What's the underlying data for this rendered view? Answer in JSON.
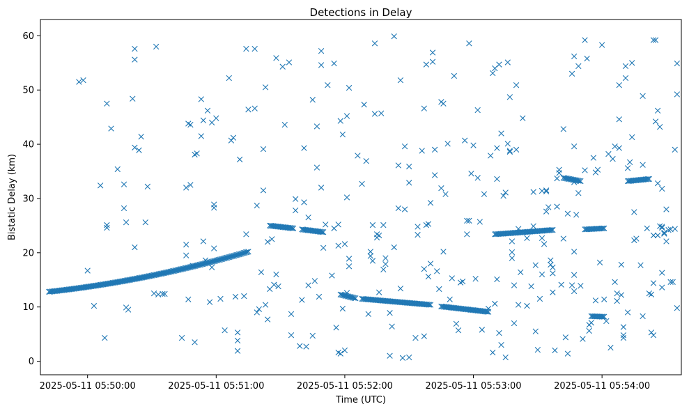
{
  "chart_data": {
    "type": "scatter",
    "title": "Detections in Delay",
    "xlabel": "Time (UTC)",
    "ylabel": "Bistatic Delay (km)",
    "x_ticks": [
      "2025-05-11 05:50:00",
      "2025-05-11 05:51:00",
      "2025-05-11 05:52:00",
      "2025-05-11 05:53:00",
      "2025-05-11 05:54:00"
    ],
    "y_ticks": [
      0,
      10,
      20,
      30,
      40,
      50,
      60
    ],
    "xlim": [
      "2025-05-11 05:49:38",
      "2025-05-11 05:54:37"
    ],
    "ylim": [
      -2.5,
      63
    ],
    "grid": false,
    "marker": "x",
    "color": "#1f77b4",
    "series_tracks": [
      {
        "x_start": "05:49:42",
        "x_end": "05:51:15",
        "y_start": 12.8,
        "y_end": 20.2,
        "curve": "increasing-quadratic"
      },
      {
        "x_start": "05:51:25",
        "x_end": "05:51:36",
        "y_start": 25.0,
        "y_end": 24.5
      },
      {
        "x_start": "05:51:40",
        "x_end": "05:51:50",
        "y_start": 24.3,
        "y_end": 23.8
      },
      {
        "x_start": "05:51:58",
        "x_end": "05:52:05",
        "y_start": 12.3,
        "y_end": 11.6
      },
      {
        "x_start": "05:52:08",
        "x_end": "05:52:40",
        "y_start": 11.5,
        "y_end": 10.4
      },
      {
        "x_start": "05:52:45",
        "x_end": "05:53:07",
        "y_start": 10.1,
        "y_end": 9.1
      },
      {
        "x_start": "05:53:10",
        "x_end": "05:53:37",
        "y_start": 23.4,
        "y_end": 24.2
      },
      {
        "x_start": "05:53:42",
        "x_end": "05:53:50",
        "y_start": 33.8,
        "y_end": 33.2
      },
      {
        "x_start": "05:53:52",
        "x_end": "05:54:01",
        "y_start": 24.3,
        "y_end": 24.5
      },
      {
        "x_start": "05:53:55",
        "x_end": "05:54:01",
        "y_start": 8.3,
        "y_end": 8.2
      },
      {
        "x_start": "05:54:12",
        "x_end": "05:54:22",
        "y_start": 33.2,
        "y_end": 33.6
      }
    ],
    "scatter_points": [
      [
        18,
        51.5
      ],
      [
        20,
        51.8
      ],
      [
        22,
        16.7
      ],
      [
        25,
        10.2
      ],
      [
        28,
        32.4
      ],
      [
        30,
        4.3
      ],
      [
        31,
        47.5
      ],
      [
        31,
        24.6
      ],
      [
        31,
        25.1
      ],
      [
        33,
        42.9
      ],
      [
        36,
        35.4
      ],
      [
        39,
        32.6
      ],
      [
        39,
        28.2
      ],
      [
        40,
        25.6
      ],
      [
        40,
        9.9
      ],
      [
        41,
        9.5
      ],
      [
        43,
        48.4
      ],
      [
        44,
        57.6
      ],
      [
        44,
        55.6
      ],
      [
        44,
        39.4
      ],
      [
        44,
        21.0
      ],
      [
        46,
        38.9
      ],
      [
        47,
        41.4
      ],
      [
        49,
        25.6
      ],
      [
        50,
        32.2
      ],
      [
        53,
        12.5
      ],
      [
        54,
        58.0
      ],
      [
        55,
        12.3
      ],
      [
        57,
        12.4
      ],
      [
        58,
        12.4
      ],
      [
        66,
        4.3
      ],
      [
        68,
        19.5
      ],
      [
        68,
        32.0
      ],
      [
        68,
        21.5
      ],
      [
        69,
        43.8
      ],
      [
        69,
        11.4
      ],
      [
        70,
        43.6
      ],
      [
        70,
        32.5
      ],
      [
        71,
        17.6
      ],
      [
        72,
        3.5
      ],
      [
        72,
        38.1
      ],
      [
        73,
        38.3
      ],
      [
        75,
        48.3
      ],
      [
        75,
        41.5
      ],
      [
        76,
        44.4
      ],
      [
        76,
        22.1
      ],
      [
        77,
        18.6
      ],
      [
        78,
        46.2
      ],
      [
        79,
        10.9
      ],
      [
        80,
        44.0
      ],
      [
        80,
        17.3
      ],
      [
        81,
        28.9
      ],
      [
        81,
        28.3
      ],
      [
        81,
        20.8
      ],
      [
        82,
        44.8
      ],
      [
        84,
        11.5
      ],
      [
        86,
        5.7
      ],
      [
        88,
        52.2
      ],
      [
        89,
        40.7
      ],
      [
        90,
        41.2
      ],
      [
        91,
        11.9
      ],
      [
        92,
        1.9
      ],
      [
        92,
        5.3
      ],
      [
        92,
        3.8
      ],
      [
        93,
        37.2
      ],
      [
        95,
        12.0
      ],
      [
        96,
        57.6
      ],
      [
        96,
        23.4
      ],
      [
        97,
        46.4
      ],
      [
        100,
        57.6
      ],
      [
        100,
        46.6
      ],
      [
        101,
        28.7
      ],
      [
        101,
        9.0
      ],
      [
        102,
        9.6
      ],
      [
        103,
        16.4
      ],
      [
        104,
        39.1
      ],
      [
        104,
        31.5
      ],
      [
        105,
        10.4
      ],
      [
        105,
        50.5
      ],
      [
        106,
        7.7
      ],
      [
        106,
        22.0
      ],
      [
        107,
        13.3
      ],
      [
        108,
        22.5
      ],
      [
        109,
        14.1
      ],
      [
        110,
        16.0
      ],
      [
        110,
        55.9
      ],
      [
        111,
        13.8
      ],
      [
        113,
        54.3
      ],
      [
        114,
        43.6
      ],
      [
        116,
        55.1
      ],
      [
        117,
        4.8
      ],
      [
        117,
        8.7
      ],
      [
        119,
        29.9
      ],
      [
        119,
        27.8
      ],
      [
        121,
        2.8
      ],
      [
        122,
        11.3
      ],
      [
        123,
        39.3
      ],
      [
        123,
        29.3
      ],
      [
        124,
        2.7
      ],
      [
        125,
        26.5
      ],
      [
        125,
        14.0
      ],
      [
        127,
        4.7
      ],
      [
        127,
        48.2
      ],
      [
        128,
        14.8
      ],
      [
        129,
        43.3
      ],
      [
        129,
        35.7
      ],
      [
        130,
        11.9
      ],
      [
        131,
        54.6
      ],
      [
        131,
        57.2
      ],
      [
        131,
        32.0
      ],
      [
        132,
        20.9
      ],
      [
        133,
        25.2
      ],
      [
        134,
        50.9
      ],
      [
        136,
        15.8
      ],
      [
        137,
        54.9
      ],
      [
        137,
        24.5
      ],
      [
        138,
        6.2
      ],
      [
        139,
        25.2
      ],
      [
        139,
        21.3
      ],
      [
        139,
        1.6
      ],
      [
        140,
        44.3
      ],
      [
        140,
        1.4
      ],
      [
        141,
        41.8
      ],
      [
        141,
        9.7
      ],
      [
        142,
        21.6
      ],
      [
        142,
        2.0
      ],
      [
        143,
        12.6
      ],
      [
        143,
        45.2
      ],
      [
        143,
        30.2
      ],
      [
        144,
        50.4
      ],
      [
        144,
        17.5
      ],
      [
        144,
        18.9
      ],
      [
        148,
        37.9
      ],
      [
        150,
        32.7
      ],
      [
        151,
        47.3
      ],
      [
        152,
        36.9
      ],
      [
        153,
        8.7
      ],
      [
        154,
        20.2
      ],
      [
        154,
        19.4
      ],
      [
        155,
        25.1
      ],
      [
        155,
        18.5
      ],
      [
        156,
        58.6
      ],
      [
        156,
        45.6
      ],
      [
        157,
        23.4
      ],
      [
        157,
        22.8
      ],
      [
        158,
        23.2
      ],
      [
        158,
        12.7
      ],
      [
        159,
        45.7
      ],
      [
        160,
        16.9
      ],
      [
        160,
        25.1
      ],
      [
        161,
        19.0
      ],
      [
        161,
        17.9
      ],
      [
        163,
        1.0
      ],
      [
        163,
        8.9
      ],
      [
        164,
        6.4
      ],
      [
        165,
        59.9
      ],
      [
        165,
        21.0
      ],
      [
        167,
        36.1
      ],
      [
        167,
        28.2
      ],
      [
        168,
        51.8
      ],
      [
        168,
        13.4
      ],
      [
        169,
        0.6
      ],
      [
        170,
        28.0
      ],
      [
        170,
        39.6
      ],
      [
        172,
        35.9
      ],
      [
        172,
        0.7
      ],
      [
        172,
        32.9
      ],
      [
        175,
        4.3
      ],
      [
        176,
        23.3
      ],
      [
        176,
        24.8
      ],
      [
        178,
        38.8
      ],
      [
        179,
        17.0
      ],
      [
        179,
        46.6
      ],
      [
        179,
        4.6
      ],
      [
        180,
        54.7
      ],
      [
        180,
        25.1
      ],
      [
        181,
        25.3
      ],
      [
        181,
        15.6
      ],
      [
        182,
        18.0
      ],
      [
        182,
        29.2
      ],
      [
        183,
        55.2
      ],
      [
        183,
        56.9
      ],
      [
        184,
        34.3
      ],
      [
        184,
        39.0
      ],
      [
        185,
        16.6
      ],
      [
        186,
        13.3
      ],
      [
        187,
        47.8
      ],
      [
        187,
        31.9
      ],
      [
        188,
        20.2
      ],
      [
        188,
        47.5
      ],
      [
        189,
        30.8
      ],
      [
        190,
        40.1
      ],
      [
        191,
        11.4
      ],
      [
        192,
        15.3
      ],
      [
        193,
        52.6
      ],
      [
        194,
        6.9
      ],
      [
        195,
        5.7
      ],
      [
        196,
        14.5
      ],
      [
        197,
        14.7
      ],
      [
        198,
        40.7
      ],
      [
        199,
        25.9
      ],
      [
        199,
        23.4
      ],
      [
        200,
        25.9
      ],
      [
        200,
        58.6
      ],
      [
        201,
        34.6
      ],
      [
        202,
        39.8
      ],
      [
        203,
        15.2
      ],
      [
        204,
        46.3
      ],
      [
        204,
        33.8
      ],
      [
        205,
        25.7
      ],
      [
        206,
        5.8
      ],
      [
        207,
        30.8
      ],
      [
        209,
        9.7
      ],
      [
        210,
        37.9
      ],
      [
        211,
        53.1
      ],
      [
        211,
        1.6
      ],
      [
        212,
        10.6
      ],
      [
        212,
        54.0
      ],
      [
        213,
        39.3
      ],
      [
        213,
        15.1
      ],
      [
        213,
        33.6
      ],
      [
        214,
        54.7
      ],
      [
        214,
        5.2
      ],
      [
        215,
        42.0
      ],
      [
        215,
        3.0
      ],
      [
        216,
        30.5
      ],
      [
        217,
        0.7
      ],
      [
        217,
        31.1
      ],
      [
        218,
        55.1
      ],
      [
        218,
        40.1
      ],
      [
        219,
        38.6
      ],
      [
        219,
        38.8
      ],
      [
        219,
        48.7
      ],
      [
        220,
        19.0
      ],
      [
        220,
        20.1
      ],
      [
        220,
        22.1
      ],
      [
        221,
        7.0
      ],
      [
        221,
        14.0
      ],
      [
        222,
        39.0
      ],
      [
        222,
        50.9
      ],
      [
        223,
        24.4
      ],
      [
        223,
        10.4
      ],
      [
        224,
        16.4
      ],
      [
        225,
        44.8
      ],
      [
        227,
        22.7
      ],
      [
        227,
        10.2
      ],
      [
        229,
        13.8
      ],
      [
        230,
        24.9
      ],
      [
        230,
        31.2
      ],
      [
        231,
        17.7
      ],
      [
        231,
        5.5
      ],
      [
        232,
        2.1
      ],
      [
        233,
        11.5
      ],
      [
        234,
        16.0
      ],
      [
        234,
        31.4
      ],
      [
        234,
        22.7
      ],
      [
        235,
        21.6
      ],
      [
        236,
        27.6
      ],
      [
        236,
        31.5
      ],
      [
        236,
        31.3
      ],
      [
        237,
        28.4
      ],
      [
        238,
        17.8
      ],
      [
        238,
        18.6
      ],
      [
        239,
        17.3
      ],
      [
        239,
        16.2
      ],
      [
        239,
        12.7
      ],
      [
        240,
        2.0
      ],
      [
        241,
        28.5
      ],
      [
        241,
        33.7
      ],
      [
        242,
        34.7
      ],
      [
        242,
        35.3
      ],
      [
        243,
        14.1
      ],
      [
        244,
        22.6
      ],
      [
        244,
        42.8
      ],
      [
        245,
        4.4
      ],
      [
        246,
        1.4
      ],
      [
        246,
        27.2
      ],
      [
        248,
        53.0
      ],
      [
        248,
        14.0
      ],
      [
        249,
        56.2
      ],
      [
        249,
        39.6
      ],
      [
        249,
        33.0
      ],
      [
        249,
        20.2
      ],
      [
        249,
        15.9
      ],
      [
        249,
        12.9
      ],
      [
        250,
        27.0
      ],
      [
        251,
        54.4
      ],
      [
        251,
        31.0
      ],
      [
        252,
        13.9
      ],
      [
        253,
        4.1
      ],
      [
        254,
        35.2
      ],
      [
        254,
        59.2
      ],
      [
        255,
        55.8
      ],
      [
        256,
        5.6
      ],
      [
        256,
        6.7
      ],
      [
        257,
        7.1
      ],
      [
        258,
        37.5
      ],
      [
        259,
        11.2
      ],
      [
        259,
        34.8
      ],
      [
        260,
        35.3
      ],
      [
        261,
        18.2
      ],
      [
        262,
        58.3
      ],
      [
        263,
        11.4
      ],
      [
        264,
        7.4
      ],
      [
        265,
        38.2
      ],
      [
        266,
        2.5
      ],
      [
        267,
        37.3
      ],
      [
        268,
        14.6
      ],
      [
        268,
        39.6
      ],
      [
        269,
        12.5
      ],
      [
        269,
        11.1
      ],
      [
        270,
        50.9
      ],
      [
        270,
        44.6
      ],
      [
        270,
        39.3
      ],
      [
        271,
        17.8
      ],
      [
        271,
        12.2
      ],
      [
        272,
        4.8
      ],
      [
        272,
        6.3
      ],
      [
        272,
        4.3
      ],
      [
        273,
        52.2
      ],
      [
        273,
        54.4
      ],
      [
        274,
        35.6
      ],
      [
        274,
        9.0
      ],
      [
        275,
        36.7
      ],
      [
        276,
        55.0
      ],
      [
        276,
        41.3
      ],
      [
        277,
        27.5
      ],
      [
        277,
        22.3
      ],
      [
        278,
        22.6
      ],
      [
        280,
        17.7
      ],
      [
        281,
        8.3
      ],
      [
        281,
        36.2
      ],
      [
        281,
        48.9
      ],
      [
        283,
        24.5
      ],
      [
        284,
        12.5
      ],
      [
        285,
        5.3
      ],
      [
        285,
        12.3
      ],
      [
        286,
        14.4
      ],
      [
        286,
        4.8
      ],
      [
        286,
        23.2
      ],
      [
        286,
        59.2
      ],
      [
        287,
        44.2
      ],
      [
        287,
        59.2
      ],
      [
        288,
        32.8
      ],
      [
        288,
        46.2
      ],
      [
        288,
        23.2
      ],
      [
        289,
        43.2
      ],
      [
        289,
        24.9
      ],
      [
        290,
        16.3
      ],
      [
        290,
        13.6
      ],
      [
        290,
        24.6
      ],
      [
        290,
        24.8
      ],
      [
        290,
        31.8
      ],
      [
        291,
        23.5
      ],
      [
        291,
        23.7
      ],
      [
        292,
        28.0
      ],
      [
        292,
        22.1
      ],
      [
        293,
        24.2
      ],
      [
        294,
        24.3
      ],
      [
        294,
        14.6
      ],
      [
        295,
        14.6
      ],
      [
        296,
        39.0
      ],
      [
        296,
        24.4
      ],
      [
        297,
        54.9
      ],
      [
        297,
        49.2
      ],
      [
        297,
        9.8
      ]
    ]
  }
}
